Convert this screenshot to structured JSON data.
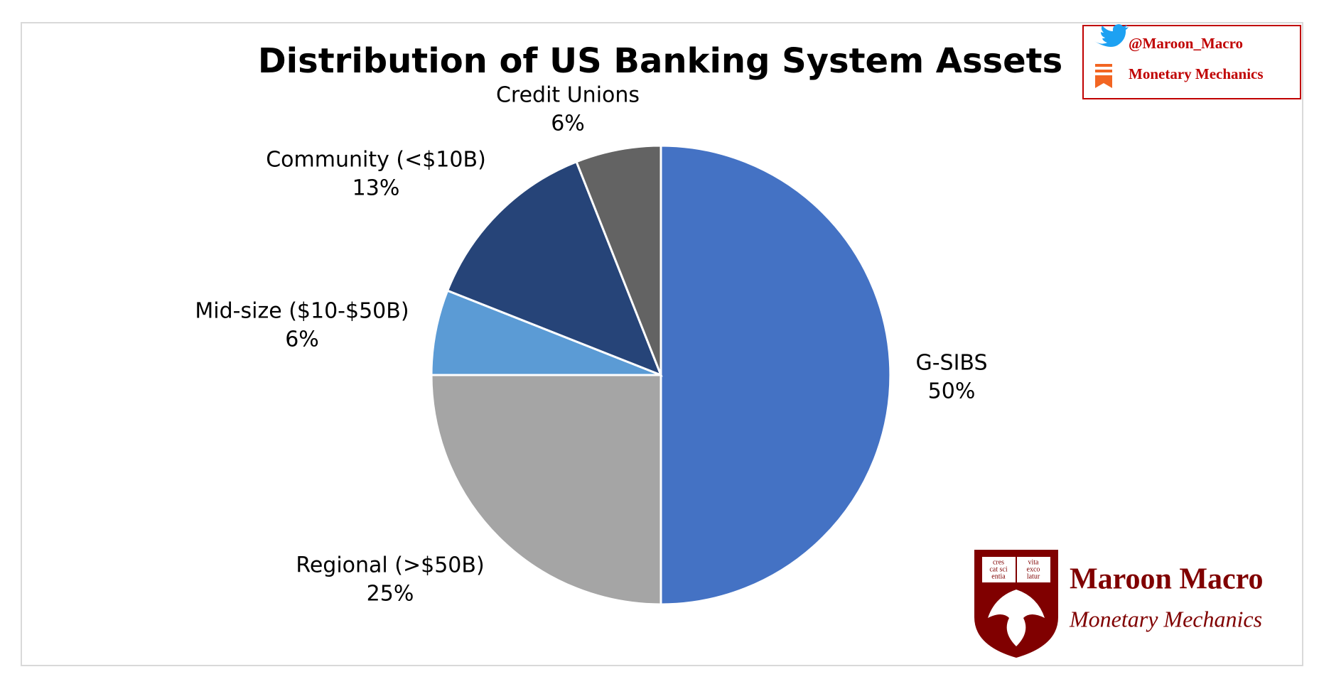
{
  "chart_data": {
    "type": "pie",
    "title": "Distribution of US Banking System Assets",
    "categories": [
      "G-SIBS",
      "Regional (>$50B)",
      "Mid-size ($10-$50B)",
      "Community (<$10B)",
      "Credit Unions"
    ],
    "values": [
      50,
      25,
      6,
      13,
      6
    ],
    "value_labels": [
      "50%",
      "25%",
      "6%",
      "13%",
      "6%"
    ],
    "colors": [
      "#4472c4",
      "#a5a5a5",
      "#5b9bd5",
      "#264478",
      "#636363"
    ]
  },
  "branding": {
    "twitter": "@Maroon_Macro",
    "substack": "Monetary Mechanics",
    "logo_title": "Maroon Macro",
    "logo_subtitle": "Monetary Mechanics",
    "motto": [
      "cres",
      "cat sci",
      "entia",
      "vita",
      "exco",
      "latur"
    ]
  }
}
